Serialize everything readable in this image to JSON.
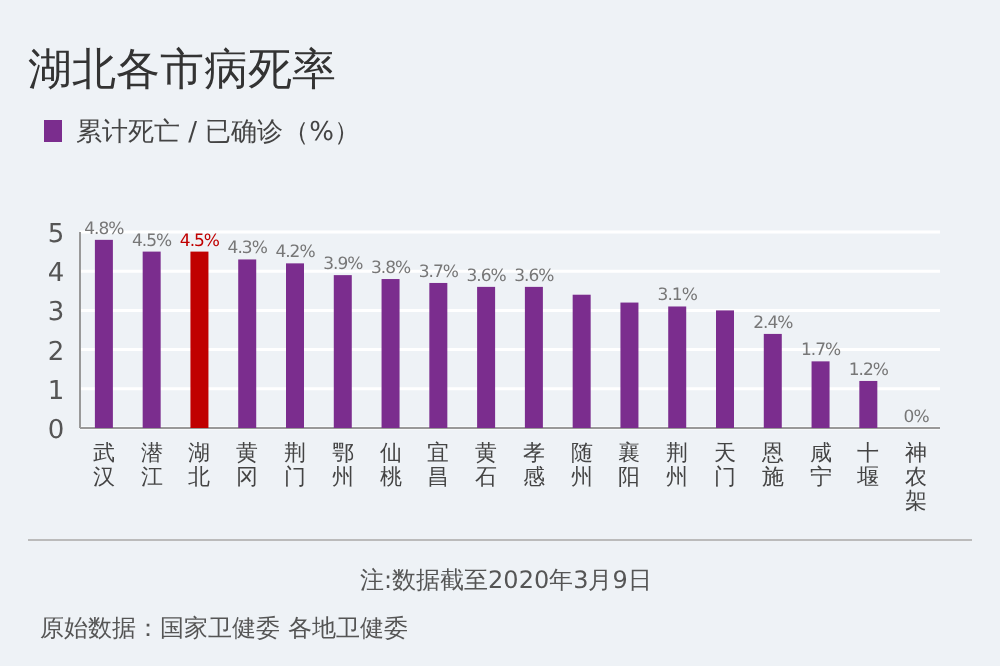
{
  "chart_data": {
    "type": "bar",
    "title": "湖北各市病死率",
    "legend": "top left",
    "grid": "y",
    "categories": [
      "武汉",
      "潜江",
      "湖北",
      "黄冈",
      "荆门",
      "鄂州",
      "仙桃",
      "宜昌",
      "黄石",
      "孝感",
      "随州",
      "襄阳",
      "荆州",
      "天门",
      "恩施",
      "咸宁",
      "十堰",
      "神农架"
    ],
    "series": [
      {
        "name": "累计死亡 / 已确诊（%）",
        "color": "#7b2d8e",
        "colors": [
          "#7b2d8e",
          "#7b2d8e",
          "#c00000",
          "#7b2d8e",
          "#7b2d8e",
          "#7b2d8e",
          "#7b2d8e",
          "#7b2d8e",
          "#7b2d8e",
          "#7b2d8e",
          "#7b2d8e",
          "#7b2d8e",
          "#7b2d8e",
          "#7b2d8e",
          "#7b2d8e",
          "#7b2d8e",
          "#7b2d8e",
          "#7b2d8e"
        ],
        "values": [
          4.8,
          4.5,
          4.5,
          4.3,
          4.2,
          3.9,
          3.8,
          3.7,
          3.6,
          3.6,
          3.4,
          3.2,
          3.1,
          3.0,
          2.4,
          1.7,
          1.2,
          0
        ],
        "value_labels": [
          "4.8%",
          "4.5%",
          "4.5%",
          "4.3%",
          "4.2%",
          "3.9%",
          "3.8%",
          "3.7%",
          "3.6%",
          "3.6%",
          null,
          null,
          "3.1%",
          null,
          "2.4%",
          "1.7%",
          "1.2%",
          "0%"
        ]
      }
    ],
    "ylim": [
      0,
      5
    ],
    "yticks": [
      0,
      1,
      2,
      3,
      4,
      5
    ],
    "annotations": [
      "注:数据截至2020年3月9日",
      "原始数据：国家卫健委 各地卫健委"
    ]
  }
}
